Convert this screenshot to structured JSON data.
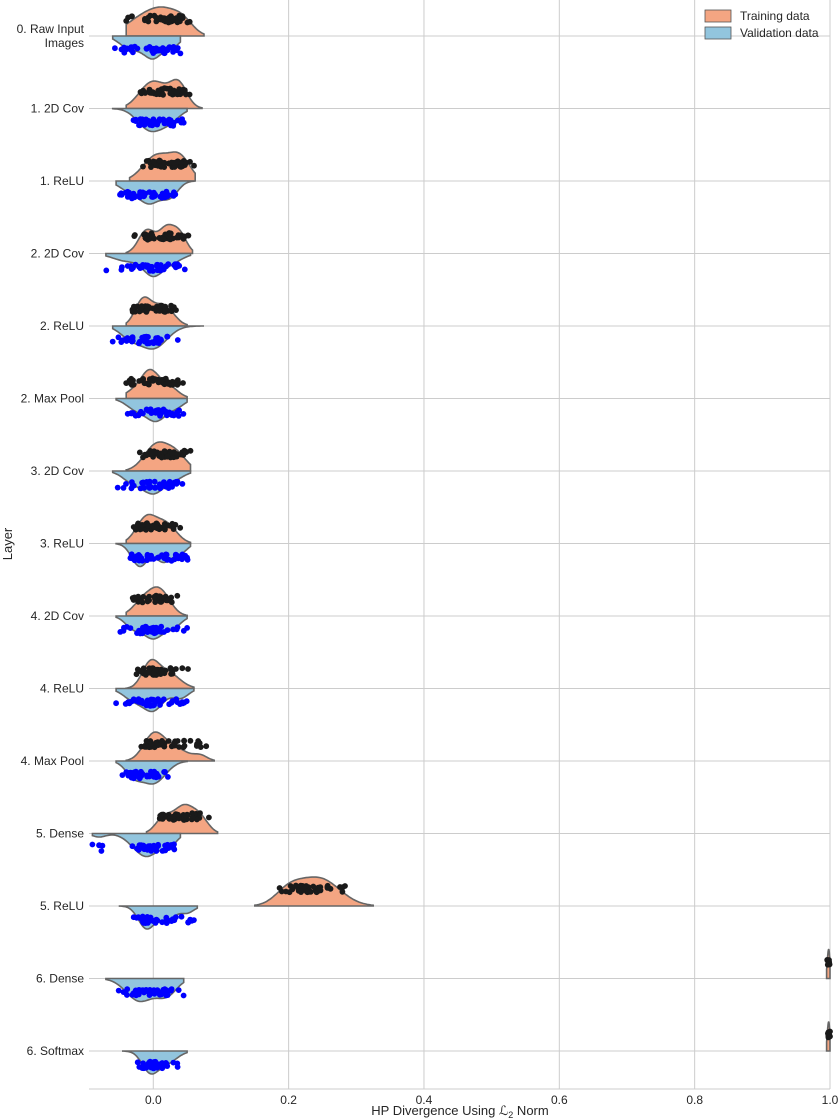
{
  "chart_data": {
    "type": "raincloud",
    "title": "",
    "xlabel": "HP Divergence Using ℒ",
    "xlabel_sub": "2",
    "xlabel_suffix": " Norm",
    "ylabel": "Layer",
    "xlim": [
      -0.095,
      1.0
    ],
    "xticks": [
      0.0,
      0.2,
      0.4,
      0.6,
      0.8,
      1.0
    ],
    "xtick_labels": [
      "0.0",
      "0.2",
      "0.4",
      "0.6",
      "0.8",
      "1.0"
    ],
    "grid": true,
    "legend_position": "top-right",
    "colors": {
      "training_fill": "#f4a582",
      "validation_fill": "#92c5de",
      "training_points": "#1a1a1a",
      "validation_points": "#0000ff",
      "outline": "#666666",
      "grid": "#cccccc"
    },
    "series": [
      {
        "name": "Training data"
      },
      {
        "name": "Validation data"
      }
    ],
    "layers": [
      {
        "label": [
          "0. Raw Input",
          "Images"
        ],
        "train": {
          "min": -0.04,
          "max": 0.075,
          "peaks": [
            [
              -0.01,
              0.028,
              1.0
            ],
            [
              0.02,
              0.02,
              0.7
            ],
            [
              0.045,
              0.015,
              0.55
            ]
          ]
        },
        "val": {
          "min": -0.06,
          "max": 0.04,
          "peaks": [
            [
              0.0,
              0.015,
              1.0
            ],
            [
              -0.035,
              0.015,
              0.55
            ],
            [
              0.03,
              0.01,
              0.4
            ]
          ]
        }
      },
      {
        "label": [
          "1. 2D Cov"
        ],
        "train": {
          "min": -0.04,
          "max": 0.072,
          "peaks": [
            [
              -0.005,
              0.018,
              1.0
            ],
            [
              0.038,
              0.012,
              0.9
            ],
            [
              0.02,
              0.02,
              0.55
            ]
          ]
        },
        "val": {
          "min": -0.06,
          "max": 0.05,
          "peaks": [
            [
              -0.005,
              0.018,
              1.0
            ],
            [
              0.025,
              0.015,
              0.5
            ]
          ]
        }
      },
      {
        "label": [
          "1. ReLU"
        ],
        "train": {
          "min": -0.035,
          "max": 0.062,
          "peaks": [
            [
              0.005,
              0.02,
              1.0
            ],
            [
              0.04,
              0.015,
              0.85
            ]
          ]
        },
        "val": {
          "min": -0.055,
          "max": 0.06,
          "peaks": [
            [
              -0.005,
              0.015,
              1.0
            ],
            [
              0.025,
              0.012,
              0.7
            ],
            [
              -0.035,
              0.015,
              0.45
            ]
          ]
        }
      },
      {
        "label": [
          "2. 2D Cov"
        ],
        "train": {
          "min": -0.04,
          "max": 0.058,
          "peaks": [
            [
              -0.01,
              0.012,
              0.9
            ],
            [
              0.02,
              0.012,
              1.0
            ],
            [
              0.04,
              0.01,
              0.65
            ]
          ]
        },
        "val": {
          "min": -0.07,
          "max": 0.055,
          "peaks": [
            [
              0.0,
              0.015,
              1.0
            ],
            [
              -0.04,
              0.02,
              0.35
            ],
            [
              0.03,
              0.015,
              0.35
            ]
          ]
        }
      },
      {
        "label": [
          "2. ReLU"
        ],
        "train": {
          "min": -0.04,
          "max": 0.05,
          "peaks": [
            [
              -0.015,
              0.012,
              1.0
            ],
            [
              0.015,
              0.015,
              0.8
            ]
          ]
        },
        "val": {
          "min": -0.06,
          "max": 0.075,
          "peaks": [
            [
              0.0,
              0.02,
              1.0
            ],
            [
              -0.035,
              0.015,
              0.45
            ]
          ]
        }
      },
      {
        "label": [
          "2. Max Pool"
        ],
        "train": {
          "min": -0.04,
          "max": 0.05,
          "peaks": [
            [
              -0.005,
              0.012,
              1.0
            ],
            [
              0.02,
              0.015,
              0.6
            ],
            [
              -0.025,
              0.015,
              0.4
            ]
          ]
        },
        "val": {
          "min": -0.055,
          "max": 0.05,
          "peaks": [
            [
              0.005,
              0.015,
              1.0
            ],
            [
              -0.025,
              0.015,
              0.5
            ],
            [
              0.035,
              0.012,
              0.35
            ]
          ]
        }
      },
      {
        "label": [
          "3. 2D Cov"
        ],
        "train": {
          "min": -0.04,
          "max": 0.055,
          "peaks": [
            [
              0.005,
              0.018,
              1.0
            ],
            [
              0.035,
              0.015,
              0.55
            ]
          ]
        },
        "val": {
          "min": -0.06,
          "max": 0.055,
          "peaks": [
            [
              0.0,
              0.015,
              1.0
            ],
            [
              -0.03,
              0.015,
              0.55
            ],
            [
              0.03,
              0.015,
              0.4
            ]
          ]
        }
      },
      {
        "label": [
          "3. ReLU"
        ],
        "train": {
          "min": -0.04,
          "max": 0.055,
          "peaks": [
            [
              -0.01,
              0.015,
              1.0
            ],
            [
              0.02,
              0.015,
              0.7
            ]
          ]
        },
        "val": {
          "min": -0.055,
          "max": 0.055,
          "peaks": [
            [
              -0.02,
              0.012,
              1.0
            ],
            [
              0.015,
              0.012,
              0.8
            ],
            [
              0.04,
              0.01,
              0.4
            ]
          ]
        }
      },
      {
        "label": [
          "4. 2D Cov"
        ],
        "train": {
          "min": -0.04,
          "max": 0.05,
          "peaks": [
            [
              0.01,
              0.015,
              1.0
            ],
            [
              -0.015,
              0.015,
              0.6
            ]
          ]
        },
        "val": {
          "min": -0.055,
          "max": 0.05,
          "peaks": [
            [
              0.0,
              0.015,
              1.0
            ],
            [
              -0.03,
              0.012,
              0.5
            ],
            [
              0.03,
              0.012,
              0.45
            ]
          ]
        }
      },
      {
        "label": [
          "4. ReLU"
        ],
        "train": {
          "min": -0.04,
          "max": 0.06,
          "peaks": [
            [
              -0.005,
              0.012,
              1.0
            ],
            [
              0.02,
              0.018,
              0.75
            ]
          ]
        },
        "val": {
          "min": -0.055,
          "max": 0.06,
          "peaks": [
            [
              0.0,
              0.015,
              1.0
            ],
            [
              -0.03,
              0.015,
              0.5
            ],
            [
              0.04,
              0.012,
              0.45
            ]
          ]
        }
      },
      {
        "label": [
          "4. Max Pool"
        ],
        "train": {
          "min": -0.04,
          "max": 0.09,
          "peaks": [
            [
              0.0,
              0.015,
              1.0
            ],
            [
              0.03,
              0.02,
              0.55
            ],
            [
              0.07,
              0.01,
              0.2
            ]
          ]
        },
        "val": {
          "min": -0.055,
          "max": 0.05,
          "peaks": [
            [
              0.0,
              0.018,
              1.0
            ],
            [
              -0.03,
              0.012,
              0.55
            ]
          ]
        }
      },
      {
        "label": [
          "5. Dense"
        ],
        "train": {
          "min": -0.01,
          "max": 0.095,
          "peaks": [
            [
              0.045,
              0.015,
              1.0
            ],
            [
              0.015,
              0.012,
              0.55
            ],
            [
              0.07,
              0.012,
              0.5
            ]
          ]
        },
        "val": {
          "min": -0.09,
          "max": 0.04,
          "peaks": [
            [
              -0.01,
              0.02,
              1.0
            ],
            [
              0.025,
              0.01,
              0.4
            ],
            [
              -0.08,
              0.01,
              0.15
            ]
          ]
        }
      },
      {
        "label": [
          "5. ReLU"
        ],
        "train": {
          "min": 0.15,
          "max": 0.325,
          "peaks": [
            [
              0.245,
              0.03,
              1.0
            ],
            [
              0.2,
              0.02,
              0.5
            ]
          ]
        },
        "val": {
          "min": -0.05,
          "max": 0.065,
          "peaks": [
            [
              -0.01,
              0.012,
              1.0
            ],
            [
              0.02,
              0.012,
              0.65
            ],
            [
              0.05,
              0.01,
              0.3
            ]
          ]
        }
      },
      {
        "label": [
          "6. Dense"
        ],
        "train": {
          "min": 0.995,
          "max": 1.0,
          "peaks": [
            [
              0.998,
              0.002,
              1.0
            ]
          ]
        },
        "val": {
          "min": -0.07,
          "max": 0.045,
          "peaks": [
            [
              -0.02,
              0.02,
              1.0
            ],
            [
              0.02,
              0.015,
              0.7
            ]
          ]
        }
      },
      {
        "label": [
          "6. Softmax"
        ],
        "train": {
          "min": 0.995,
          "max": 1.0,
          "peaks": [
            [
              0.998,
              0.002,
              1.0
            ]
          ]
        },
        "val": {
          "min": -0.045,
          "max": 0.05,
          "peaks": [
            [
              -0.005,
              0.012,
              1.0
            ],
            [
              0.02,
              0.015,
              0.6
            ]
          ]
        }
      }
    ]
  }
}
